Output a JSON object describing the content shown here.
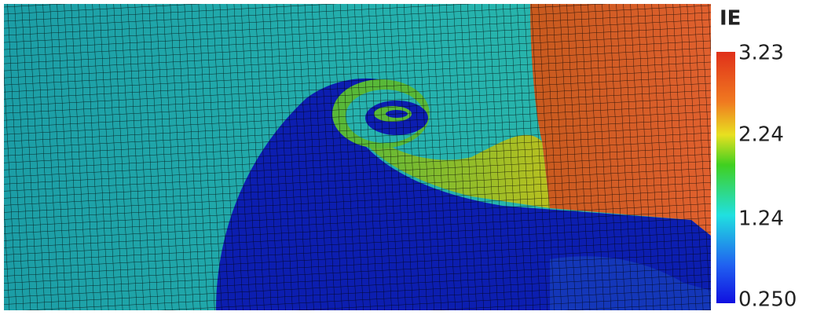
{
  "colorbar": {
    "title": "IE",
    "labels": [
      "3.23",
      "2.24",
      "1.24",
      "0.250"
    ]
  }
}
